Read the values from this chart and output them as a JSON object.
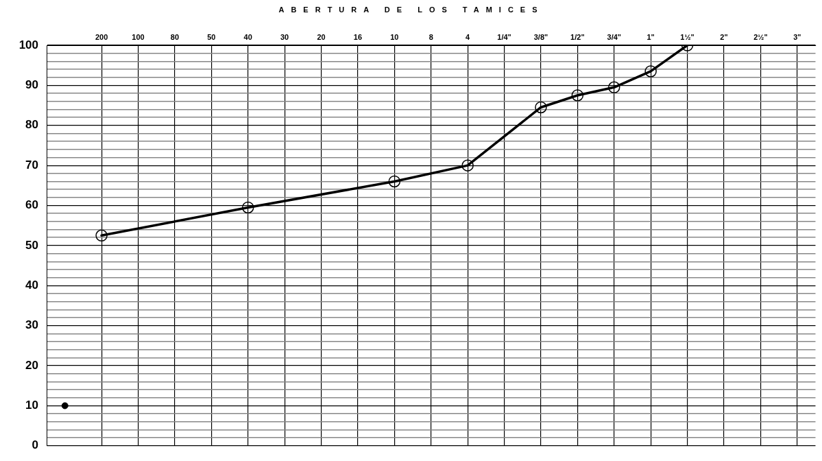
{
  "chart_data": {
    "type": "line",
    "title": "ABERTURA DE LOS TAMICES",
    "grid": true,
    "legend": false,
    "marker": "circle",
    "line_style": "solid",
    "categories": [
      null,
      "200",
      "100",
      "80",
      "50",
      "40",
      "30",
      "20",
      "16",
      "10",
      "8",
      "4",
      "1/4\"",
      "3/8\"",
      "1/2\"",
      "3/4\"",
      "1\"",
      "1½\"",
      "2\"",
      "2½\"",
      "3\""
    ],
    "ylim": [
      0,
      100
    ],
    "yticks": [
      0,
      {
        "value": 2,
        "label": null
      },
      {
        "value": 4,
        "label": null
      },
      {
        "value": 6,
        "label": null
      },
      {
        "value": 8,
        "label": null
      },
      10,
      {
        "value": 12,
        "label": null
      },
      {
        "value": 14,
        "label": null
      },
      {
        "value": 16,
        "label": null
      },
      {
        "value": 18,
        "label": null
      },
      20,
      {
        "value": 22,
        "label": null
      },
      {
        "value": 24,
        "label": null
      },
      {
        "value": 26,
        "label": null
      },
      {
        "value": 28,
        "label": null
      },
      30,
      {
        "value": 32,
        "label": null
      },
      {
        "value": 34,
        "label": null
      },
      {
        "value": 36,
        "label": null
      },
      {
        "value": 38,
        "label": null
      },
      40,
      {
        "value": 42,
        "label": null
      },
      {
        "value": 44,
        "label": null
      },
      {
        "value": 46,
        "label": null
      },
      {
        "value": 48,
        "label": null
      },
      50,
      {
        "value": 52,
        "label": null
      },
      {
        "value": 54,
        "label": null
      },
      {
        "value": 56,
        "label": null
      },
      {
        "value": 58,
        "label": null
      },
      60,
      {
        "value": 62,
        "label": null
      },
      {
        "value": 64,
        "label": null
      },
      {
        "value": 66,
        "label": null
      },
      {
        "value": 68,
        "label": null
      },
      70,
      {
        "value": 72,
        "label": null
      },
      {
        "value": 74,
        "label": null
      },
      {
        "value": 76,
        "label": null
      },
      {
        "value": 78,
        "label": null
      },
      80,
      {
        "value": 82,
        "label": null
      },
      {
        "value": 84,
        "label": null
      },
      {
        "value": 86,
        "label": null
      },
      {
        "value": 88,
        "label": null
      },
      90,
      {
        "value": 92,
        "label": null
      },
      {
        "value": 94,
        "label": null
      },
      {
        "value": 96,
        "label": null
      },
      {
        "value": 98,
        "label": null
      },
      100
    ],
    "series": [
      {
        "color": "#000000",
        "values": [
          null,
          52.5,
          null,
          null,
          null,
          59.5,
          null,
          null,
          null,
          66,
          null,
          70,
          null,
          84.5,
          87.5,
          89.5,
          93.5,
          100,
          null,
          null,
          null
        ]
      },
      {
        "type": "scatter",
        "color": "#000000",
        "values": [
          10,
          null,
          null,
          null,
          null,
          null,
          null,
          null,
          null,
          null,
          null,
          null,
          null,
          null,
          null,
          null,
          null,
          null,
          null,
          null,
          null
        ]
      }
    ]
  }
}
